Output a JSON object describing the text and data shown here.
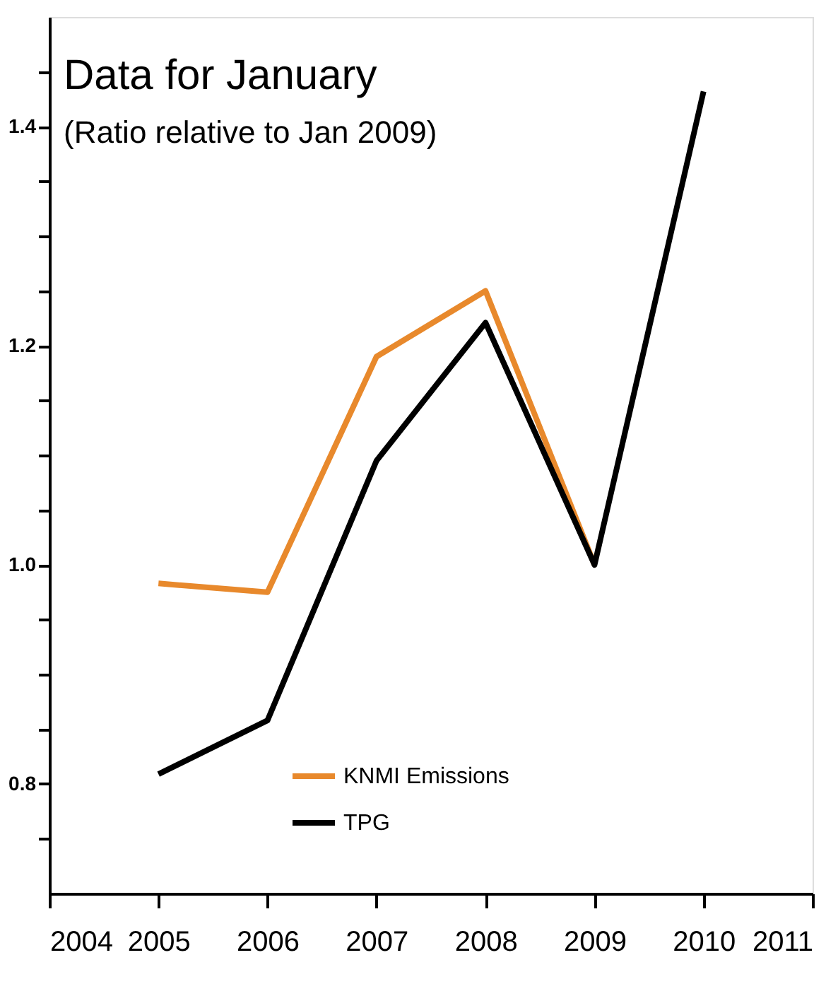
{
  "chart_data": {
    "type": "line",
    "annotations": [
      "Data for January",
      "(Ratio relative to Jan 2009)"
    ],
    "x": [
      2005,
      2006,
      2007,
      2008,
      2009,
      2010
    ],
    "series": [
      {
        "name": "KNMI Emissions",
        "color": "#e8892c",
        "x": [
          2005,
          2006,
          2007,
          2008,
          2009
        ],
        "values": [
          0.983,
          0.975,
          1.19,
          1.25,
          1.0
        ]
      },
      {
        "name": "TPG",
        "color": "#000000",
        "values": [
          0.809,
          0.858,
          1.095,
          1.221,
          1.0,
          1.432
        ]
      }
    ],
    "xlim": [
      2004,
      2011
    ],
    "xticks": [
      2004,
      2005,
      2006,
      2007,
      2008,
      2009,
      2010,
      2011
    ],
    "ylim": [
      0.7,
      1.5
    ],
    "yticks": [
      {
        "value": 0.75,
        "label": null
      },
      0.8,
      {
        "value": 0.85,
        "label": null
      },
      {
        "value": 0.9,
        "label": null
      },
      {
        "value": 0.95,
        "label": null
      },
      {
        "value": 1.0,
        "label": "1.0"
      },
      {
        "value": 1.05,
        "label": null
      },
      {
        "value": 1.1,
        "label": null
      },
      {
        "value": 1.15,
        "label": null
      },
      1.2,
      {
        "value": 1.25,
        "label": null
      },
      {
        "value": 1.3,
        "label": null
      },
      {
        "value": 1.35,
        "label": null
      },
      1.4,
      {
        "value": 1.45,
        "label": null
      }
    ],
    "grid": false,
    "legend": "bottom",
    "marker": "none",
    "line_style": "solid"
  }
}
